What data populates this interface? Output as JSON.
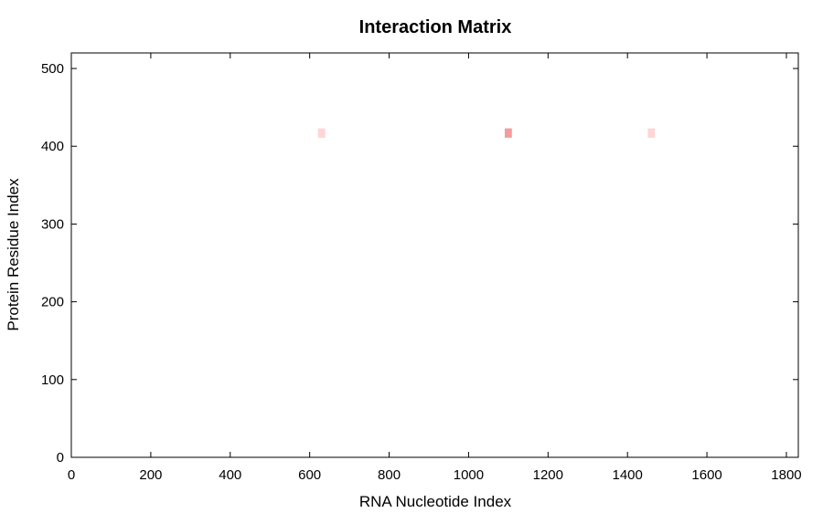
{
  "chart_data": {
    "type": "heatmap",
    "title": "Interaction Matrix",
    "xlabel": "RNA Nucleotide Index",
    "ylabel": "Protein Residue Index",
    "xlim": [
      0,
      1830
    ],
    "ylim": [
      0,
      520
    ],
    "x_ticks": [
      0,
      200,
      400,
      600,
      800,
      1000,
      1200,
      1400,
      1600,
      1800
    ],
    "y_ticks": [
      0,
      100,
      200,
      300,
      400,
      500
    ],
    "x_tick_labels": [
      "0",
      "200",
      "400",
      "600",
      "800",
      "1000",
      "1200",
      "1400",
      "1600",
      "1800"
    ],
    "y_tick_labels": [
      "0",
      "100",
      "200",
      "300",
      "400",
      "500"
    ],
    "grid": false,
    "legend": "none",
    "cell_size": {
      "x": 18,
      "y": 12
    },
    "colors": {
      "low": "#ffd5d5",
      "high": "#f49c9c"
    },
    "cells": [
      {
        "x": 630,
        "y": 417,
        "value": 0.3
      },
      {
        "x": 1100,
        "y": 417,
        "value": 1.0
      },
      {
        "x": 1460,
        "y": 417,
        "value": 0.3
      }
    ]
  }
}
